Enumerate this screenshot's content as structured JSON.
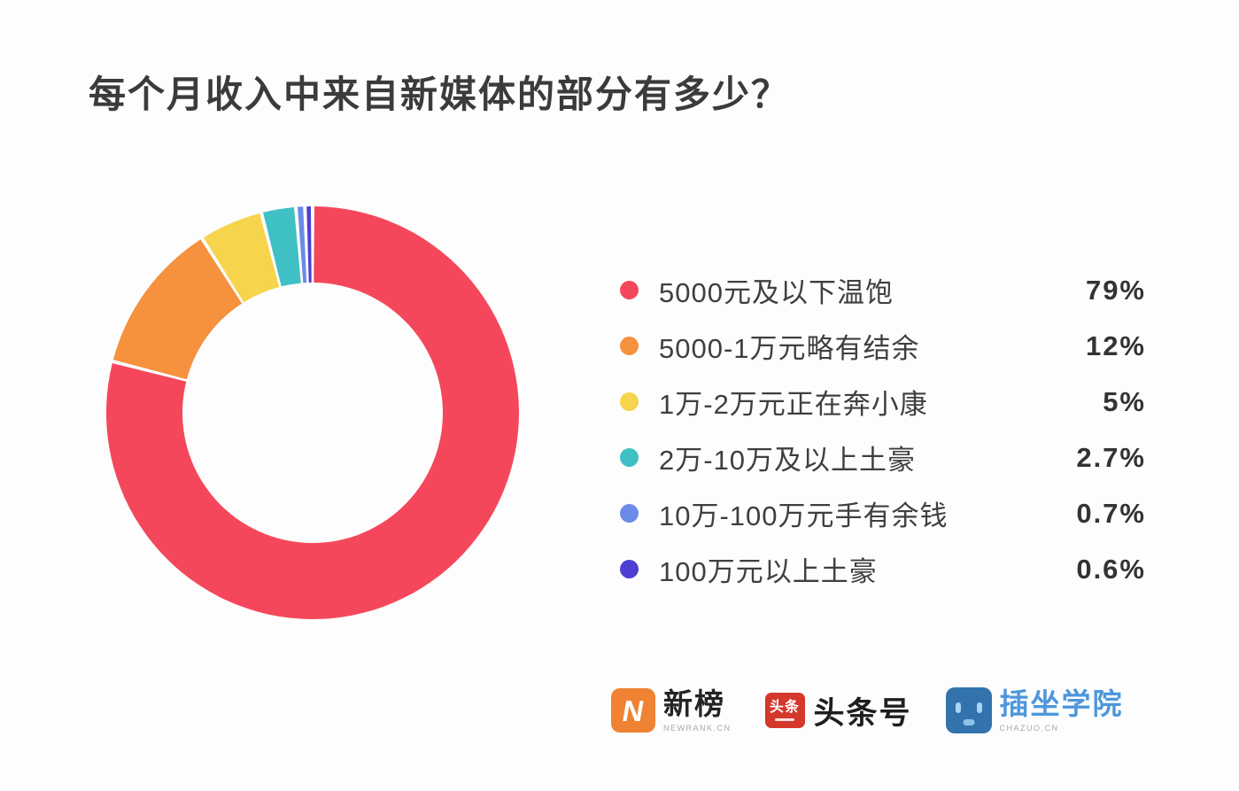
{
  "title": "每个月收入中来自新媒体的部分有多少？",
  "chart_data": {
    "type": "pie",
    "subtype": "donut",
    "start_angle_deg": 0,
    "direction": "clockwise",
    "inner_radius_ratio": 0.63,
    "slice_gap_deg": 1.0,
    "legend_position": "right",
    "items": [
      {
        "label": "5000元及以下温饱",
        "value": 79,
        "display": "79%",
        "color": "#F5475B"
      },
      {
        "label": "5000-1万元略有结余",
        "value": 12,
        "display": "12%",
        "color": "#F6913E"
      },
      {
        "label": "1万-2万元正在奔小康",
        "value": 5,
        "display": "5%",
        "color": "#F6D44B"
      },
      {
        "label": "2万-10万及以上土豪",
        "value": 2.7,
        "display": "2.7%",
        "color": "#3EC0C4"
      },
      {
        "label": "10万-100万元手有余钱",
        "value": 0.7,
        "display": "0.7%",
        "color": "#6C8BE8"
      },
      {
        "label": "100万元以上土豪",
        "value": 0.6,
        "display": "0.6%",
        "color": "#4C3FD4"
      }
    ]
  },
  "footer": {
    "logos": [
      {
        "name": "newrank",
        "icon": "newrank-lightning-icon",
        "icon_letter": "N",
        "title": "新榜",
        "caption": "NEWRANK.CN",
        "brand_color": "#F08233"
      },
      {
        "name": "toutiao",
        "icon": "toutiao-icon",
        "icon_text": "头条",
        "title": "头条号",
        "brand_color": "#D5372B"
      },
      {
        "name": "chazuo",
        "icon": "chazuo-face-icon",
        "title": "插坐学院",
        "caption": "CHAZUO.CN",
        "brand_color": "#3273AE",
        "title_color": "#4E97DC"
      }
    ]
  }
}
